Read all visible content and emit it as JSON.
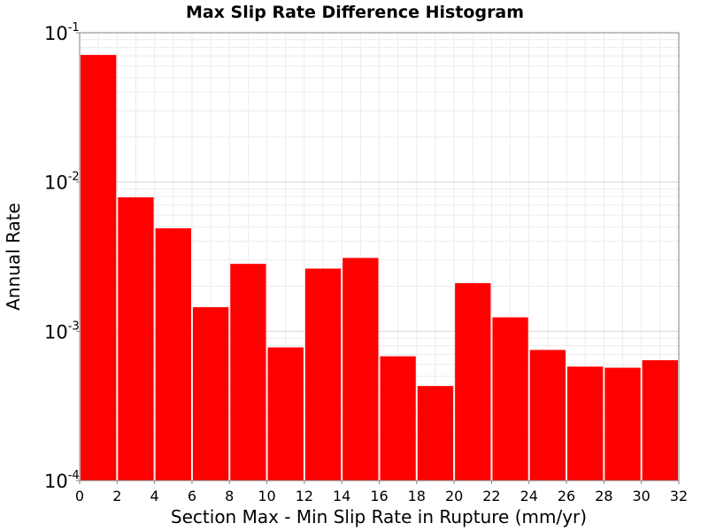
{
  "chart_data": {
    "type": "bar",
    "title": "Max Slip Rate Difference Histogram",
    "xlabel": "Section Max - Min Slip Rate in Rupture (mm/yr)",
    "ylabel": "Annual Rate",
    "xlim": [
      0,
      32
    ],
    "ylim": [
      0.0001,
      0.1
    ],
    "yscale": "log",
    "grid": true,
    "bar_color": "#ff0000",
    "x_ticks": [
      "0",
      "2",
      "4",
      "6",
      "8",
      "10",
      "12",
      "14",
      "16",
      "18",
      "20",
      "22",
      "24",
      "26",
      "28",
      "30",
      "32"
    ],
    "y_ticks": [
      {
        "base": "10",
        "exp": "-4",
        "value": 0.0001
      },
      {
        "base": "10",
        "exp": "-3",
        "value": 0.001
      },
      {
        "base": "10",
        "exp": "-2",
        "value": 0.01
      },
      {
        "base": "10",
        "exp": "-1",
        "value": 0.1
      }
    ],
    "bin_centers": [
      1,
      3,
      5,
      7,
      9,
      11,
      13,
      15,
      17,
      19,
      21,
      23,
      25,
      27,
      29,
      31
    ],
    "bin_width": 2,
    "values": [
      0.071,
      0.0079,
      0.0049,
      0.00145,
      0.00283,
      0.00078,
      0.00263,
      0.0031,
      0.00068,
      0.00043,
      0.0021,
      0.00124,
      0.00075,
      0.00058,
      0.00057,
      0.00064
    ]
  }
}
